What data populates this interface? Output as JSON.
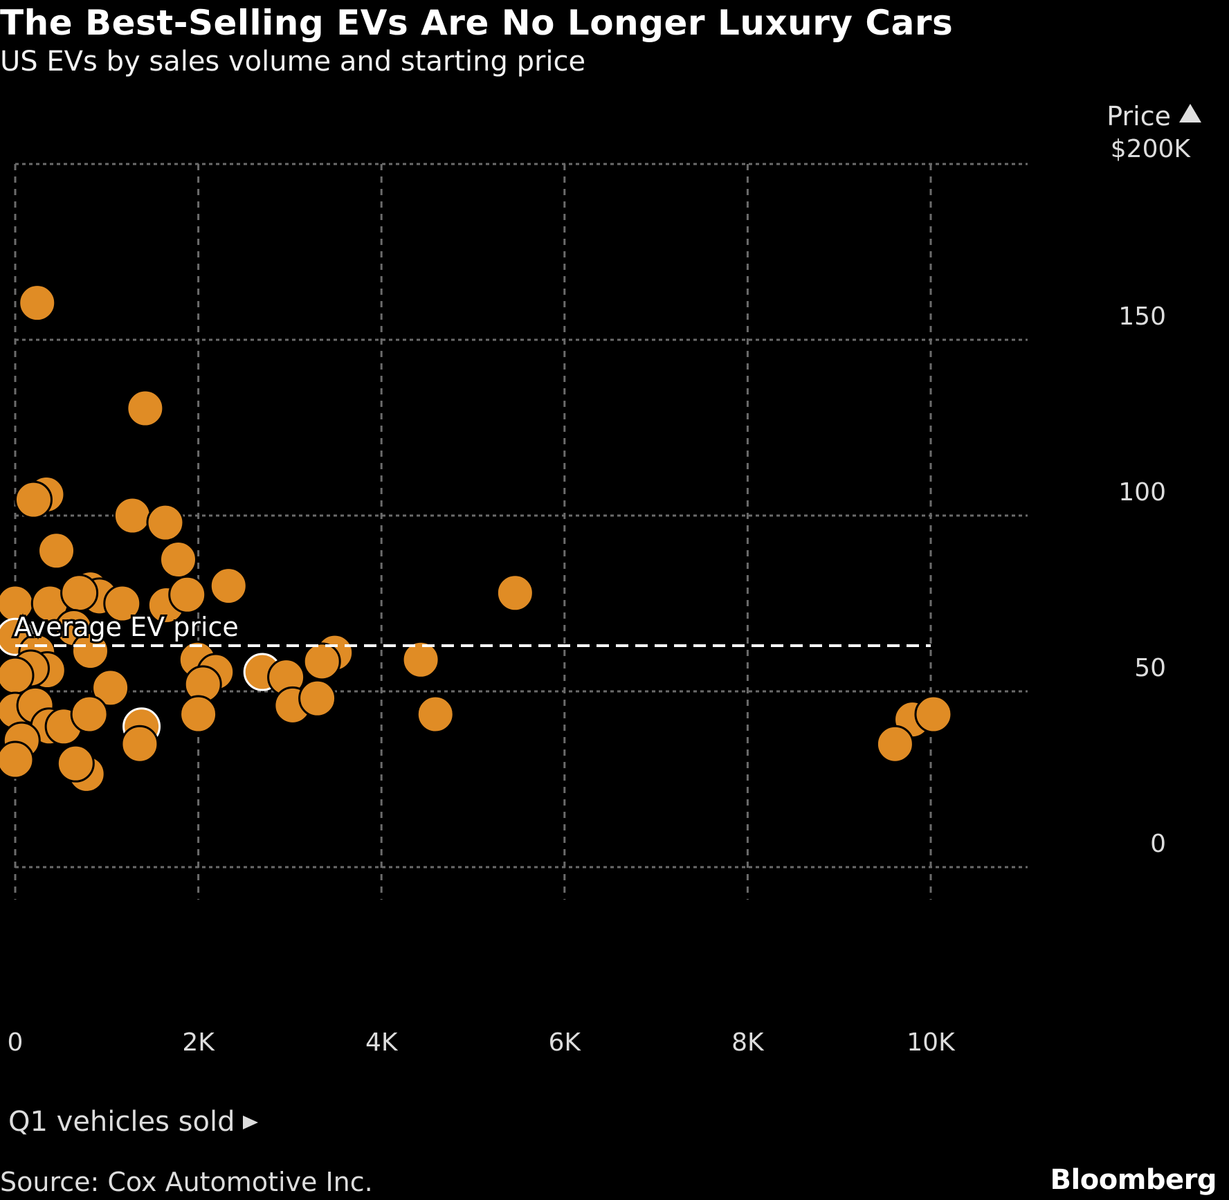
{
  "header": {
    "title": "The Best-Selling EVs Are No Longer Luxury Cars",
    "subtitle": "US EVs by sales volume and starting price"
  },
  "footer": {
    "source": "Source: Cox Automotive Inc.",
    "brand": "Bloomberg"
  },
  "colors": {
    "background": "#000000",
    "point": "#e08c25",
    "highlight_outline": "#ffffff",
    "grid": "#6b6b6b",
    "average_line": "#ffffff"
  },
  "chart_data": {
    "type": "scatter",
    "title": "The Best-Selling EVs Are No Longer Luxury Cars",
    "subtitle": "US EVs by sales volume and starting price",
    "xlabel": "Q1 vehicles sold",
    "ylabel": "Price",
    "y_top_label": "$200K",
    "xlim": [
      0,
      11000
    ],
    "ylim": [
      0,
      200
    ],
    "x_ticks": [
      {
        "value": 0,
        "label": "0"
      },
      {
        "value": 2000,
        "label": "2K"
      },
      {
        "value": 4000,
        "label": "4K"
      },
      {
        "value": 6000,
        "label": "6K"
      },
      {
        "value": 8000,
        "label": "8K"
      },
      {
        "value": 10000,
        "label": "10K"
      }
    ],
    "y_ticks": [
      {
        "value": 0,
        "label": "0"
      },
      {
        "value": 50,
        "label": "50"
      },
      {
        "value": 100,
        "label": "100"
      },
      {
        "value": 150,
        "label": "150"
      },
      {
        "value": 200,
        "label": "$200K"
      }
    ],
    "grid": true,
    "y_axis_side": "right",
    "reference_line": {
      "label": "Average EV price",
      "value": 63,
      "x_end": 10000
    },
    "points": [
      {
        "x": 240,
        "y": 160.5
      },
      {
        "x": 1420,
        "y": 130.5
      },
      {
        "x": 340,
        "y": 106
      },
      {
        "x": 200,
        "y": 104.5
      },
      {
        "x": 1280,
        "y": 100
      },
      {
        "x": 1640,
        "y": 98
      },
      {
        "x": 450,
        "y": 90
      },
      {
        "x": 1780,
        "y": 87.5
      },
      {
        "x": 2330,
        "y": 80
      },
      {
        "x": 0,
        "y": 75
      },
      {
        "x": 380,
        "y": 75
      },
      {
        "x": 820,
        "y": 79
      },
      {
        "x": 920,
        "y": 77
      },
      {
        "x": 700,
        "y": 78
      },
      {
        "x": 1170,
        "y": 75
      },
      {
        "x": 1650,
        "y": 74.5
      },
      {
        "x": 1880,
        "y": 77.5
      },
      {
        "x": 5460,
        "y": 78
      },
      {
        "x": 640,
        "y": 68
      },
      {
        "x": 0,
        "y": 65.5,
        "highlight": true
      },
      {
        "x": 240,
        "y": 61
      },
      {
        "x": 820,
        "y": 61.5
      },
      {
        "x": 350,
        "y": 56
      },
      {
        "x": 170,
        "y": 56.5
      },
      {
        "x": 0,
        "y": 54.5
      },
      {
        "x": 1990,
        "y": 59
      },
      {
        "x": 2190,
        "y": 55.5
      },
      {
        "x": 2050,
        "y": 52
      },
      {
        "x": 2700,
        "y": 55.5,
        "highlight": true
      },
      {
        "x": 2960,
        "y": 54
      },
      {
        "x": 3490,
        "y": 61
      },
      {
        "x": 3350,
        "y": 58.5
      },
      {
        "x": 4430,
        "y": 59
      },
      {
        "x": 1040,
        "y": 51
      },
      {
        "x": 0,
        "y": 44.5
      },
      {
        "x": 220,
        "y": 46
      },
      {
        "x": 370,
        "y": 40
      },
      {
        "x": 530,
        "y": 40
      },
      {
        "x": 810,
        "y": 43.5
      },
      {
        "x": 2000,
        "y": 43.5
      },
      {
        "x": 3030,
        "y": 46
      },
      {
        "x": 3300,
        "y": 48
      },
      {
        "x": 4590,
        "y": 43.5
      },
      {
        "x": 1380,
        "y": 40,
        "highlight": true
      },
      {
        "x": 1360,
        "y": 35
      },
      {
        "x": 70,
        "y": 36
      },
      {
        "x": 0,
        "y": 30.5
      },
      {
        "x": 780,
        "y": 26.5
      },
      {
        "x": 660,
        "y": 29.5
      },
      {
        "x": 9800,
        "y": 42
      },
      {
        "x": 10030,
        "y": 43.5
      },
      {
        "x": 9610,
        "y": 35
      }
    ]
  }
}
